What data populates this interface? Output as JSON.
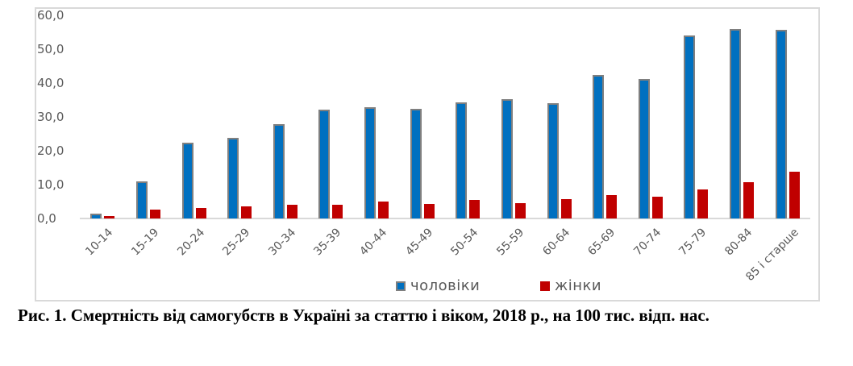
{
  "chart_data": {
    "type": "bar",
    "title": "",
    "xlabel": "",
    "ylabel": "",
    "ylim": [
      0,
      60
    ],
    "y_ticks": [
      "0,0",
      "10,0",
      "20,0",
      "30,0",
      "40,0",
      "50,0",
      "60,0"
    ],
    "grid": false,
    "legend_position": "bottom",
    "categories": [
      "10-14",
      "15-19",
      "20-24",
      "25-29",
      "30-34",
      "35-39",
      "40-44",
      "45-49",
      "50-54",
      "55-59",
      "60-64",
      "65-69",
      "70-74",
      "75-79",
      "80-84",
      "85 і старше"
    ],
    "series": [
      {
        "name": "чоловіки",
        "color": "#0070C0",
        "values": [
          1.5,
          11.0,
          22.5,
          23.7,
          27.9,
          32.1,
          32.8,
          32.4,
          34.2,
          35.2,
          34.0,
          42.3,
          41.1,
          54.1,
          56.0,
          55.8
        ]
      },
      {
        "name": "жінки",
        "color": "#C00000",
        "values": [
          0.8,
          2.7,
          3.2,
          3.6,
          4.1,
          4.0,
          5.0,
          4.3,
          5.5,
          4.5,
          5.7,
          6.8,
          6.4,
          8.5,
          10.7,
          13.8
        ]
      }
    ]
  },
  "legend": {
    "men_label": "чоловіки",
    "women_label": "жінки"
  },
  "caption": {
    "text": "Рис. 1. Смертність від самогубств в Україні за статтю і віком, 2018 р., на 100 тис. відп. нас."
  },
  "colors": {
    "men": "#0070C0",
    "women": "#C00000",
    "bar_border": "#7F7F7F",
    "axis": "#D9D9D9",
    "text": "#595959"
  }
}
